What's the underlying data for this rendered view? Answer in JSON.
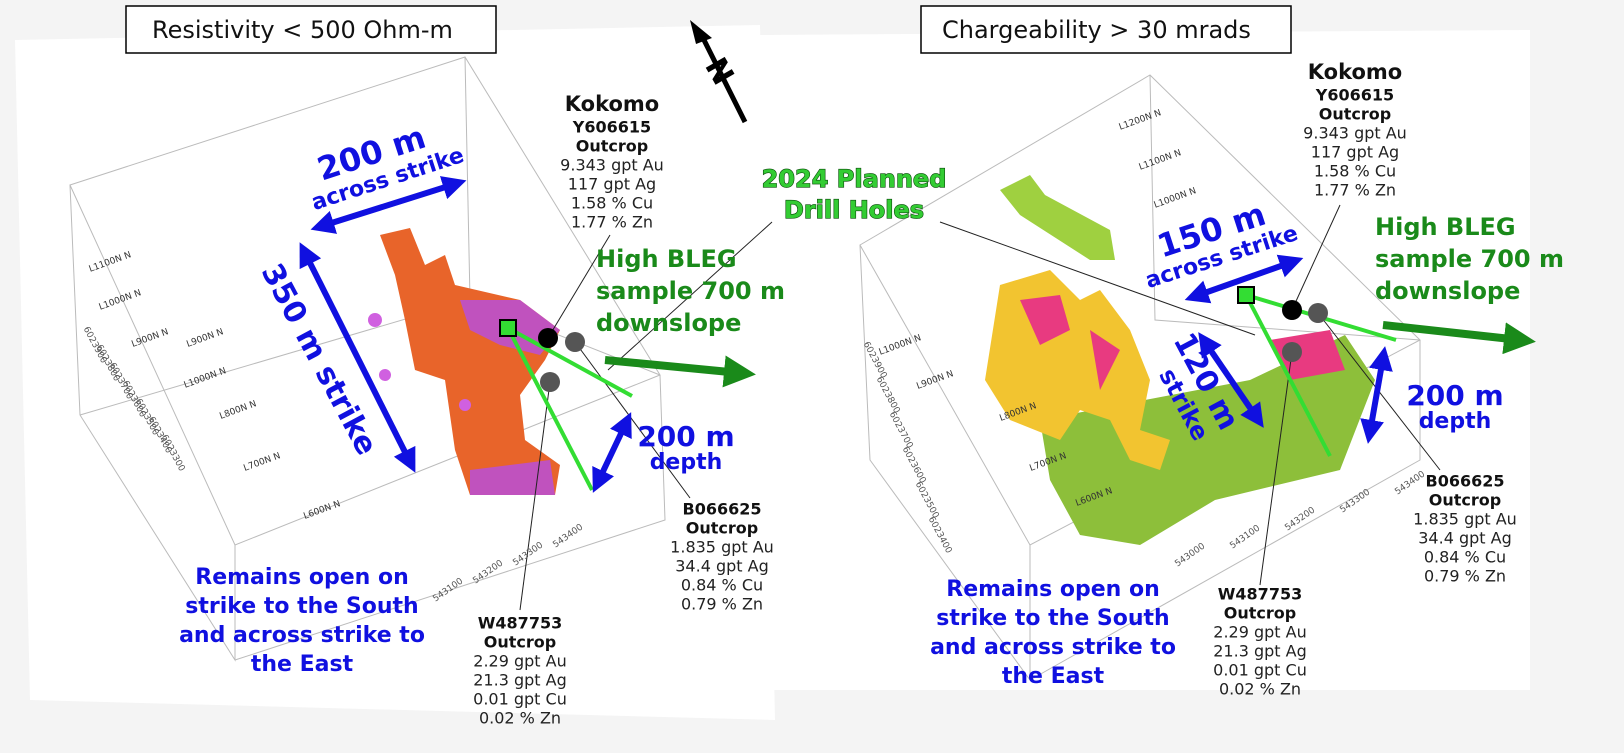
{
  "north_label": "N",
  "drill_holes_label": [
    "2024 Planned",
    "Drill Holes"
  ],
  "panels": [
    {
      "title": "Resistivity < 500 Ohm-m",
      "across": {
        "size": "200 m",
        "text": "across strike"
      },
      "strike": [
        "350 m strike"
      ],
      "depth": {
        "size": "200 m",
        "text": "depth"
      },
      "bleg": [
        "High BLEG",
        "sample 700 m",
        "downslope"
      ],
      "open": [
        "Remains open  on",
        "strike to the South",
        "and across strike to",
        "the East"
      ],
      "samples": [
        {
          "header": [
            "Kokomo",
            "Y606615",
            "Outcrop"
          ],
          "assays": [
            "9.343 gpt Au",
            "117 gpt Ag",
            "1.58 % Cu",
            "1.77 % Zn"
          ]
        },
        {
          "header": [
            "B066625",
            "Outcrop"
          ],
          "assays": [
            "1.835 gpt Au",
            "34.4 gpt Ag",
            "0.84 % Cu",
            "0.79 % Zn"
          ]
        },
        {
          "header": [
            "W487753",
            "Outcrop"
          ],
          "assays": [
            "2.29 gpt Au",
            "21.3 gpt Ag",
            "0.01 gpt Cu",
            "0.02 % Zn"
          ]
        }
      ],
      "line_labels": [
        "L1100N N",
        "L1000N N",
        "L900N N",
        "L1000N N",
        "L900N N",
        "L800N N",
        "L700N N",
        "L600N N"
      ],
      "y_ticks": [
        "6023900",
        "6023800",
        "6023700",
        "6023600",
        "6023500",
        "6023400",
        "6023300"
      ],
      "x_ticks": [
        "543100",
        "543200",
        "543300",
        "543400"
      ]
    },
    {
      "title": "Chargeability > 30 mrads",
      "across": {
        "size": "150 m",
        "text": "across strike"
      },
      "strike": [
        "120 m",
        "strike"
      ],
      "depth": {
        "size": "200 m",
        "text": "depth"
      },
      "bleg": [
        "High BLEG",
        "sample 700 m",
        "downslope"
      ],
      "open": [
        "Remains open  on",
        "strike to the South",
        "and across strike to",
        "the East"
      ],
      "samples": [
        {
          "header": [
            "Kokomo",
            "Y606615",
            "Outcrop"
          ],
          "assays": [
            "9.343 gpt Au",
            "117 gpt Ag",
            "1.58 % Cu",
            "1.77 % Zn"
          ]
        },
        {
          "header": [
            "B066625",
            "Outcrop"
          ],
          "assays": [
            "1.835 gpt Au",
            "34.4 gpt Ag",
            "0.84 % Cu",
            "0.79 % Zn"
          ]
        },
        {
          "header": [
            "W487753",
            "Outcrop"
          ],
          "assays": [
            "2.29 gpt Au",
            "21.3 gpt Ag",
            "0.01 gpt Cu",
            "0.02 % Zn"
          ]
        }
      ],
      "line_labels": [
        "L1200N N",
        "L1100N N",
        "L1000N N",
        "L1000N N",
        "L900N N",
        "L800N N",
        "L700N N",
        "L600N N"
      ],
      "y_ticks": [
        "6023900",
        "6023800",
        "6023700",
        "6023600",
        "6023500",
        "6023400"
      ],
      "x_ticks": [
        "543000",
        "543100",
        "543200",
        "543300",
        "543400"
      ]
    }
  ]
}
